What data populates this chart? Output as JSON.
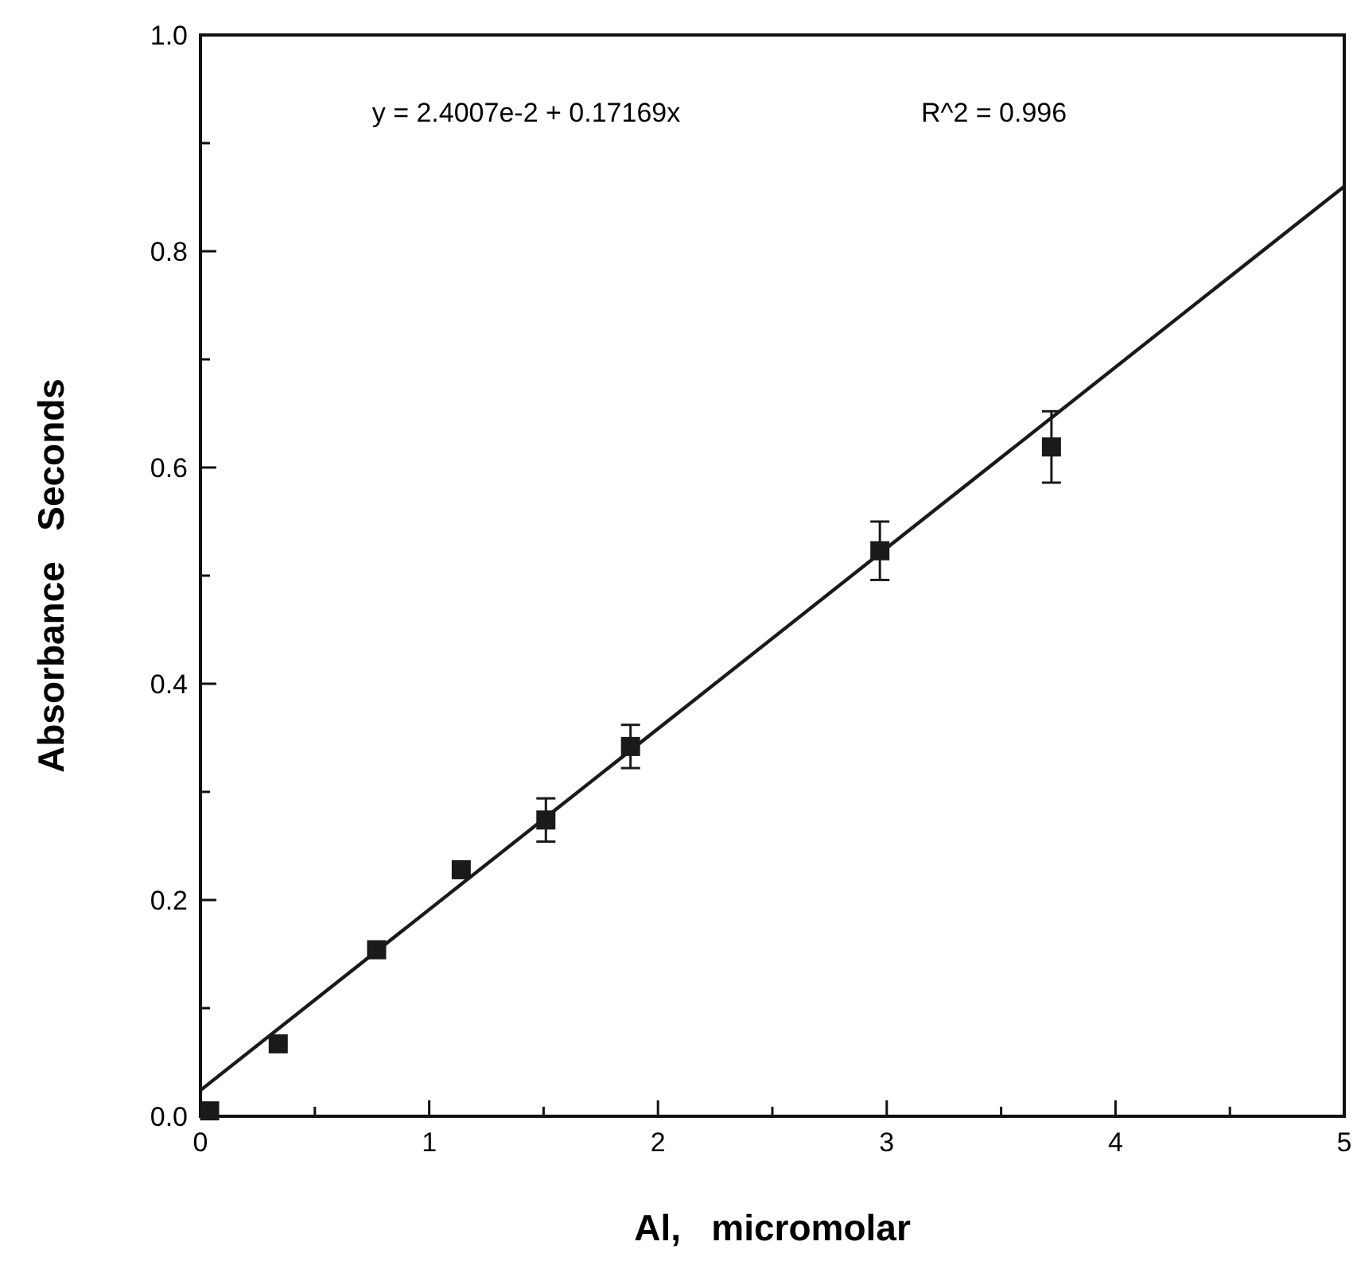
{
  "chart_data": {
    "type": "scatter",
    "xlabel": "Al,   micromolar",
    "ylabel": "Absorbance   Seconds",
    "annotations": [
      "y = 2.4007e-2 + 0.17169x",
      "R^2 = 0.996"
    ],
    "xlim": [
      0,
      5
    ],
    "ylim": [
      0,
      1
    ],
    "xticks": [
      0,
      {
        "value": 0.5,
        "label": null
      },
      1,
      {
        "value": 1.5,
        "label": null
      },
      2,
      {
        "value": 2.5,
        "label": null
      },
      3,
      {
        "value": 3.5,
        "label": null
      },
      4,
      {
        "value": 4.5,
        "label": null
      },
      5
    ],
    "yticks": [
      {
        "value": 0,
        "label": "0.0"
      },
      {
        "value": 0.1,
        "label": null
      },
      0.2,
      {
        "value": 0.3,
        "label": null
      },
      0.4,
      {
        "value": 0.5,
        "label": null
      },
      0.6,
      {
        "value": 0.7,
        "label": null
      },
      0.8,
      {
        "value": 0.9,
        "label": null
      },
      {
        "value": 1,
        "label": "1.0"
      }
    ],
    "grid": false,
    "series": [
      {
        "color": "#1a1a1a",
        "marker": "square",
        "x": [
          0.04,
          0.34,
          0.77,
          1.14,
          1.51,
          1.88,
          2.97,
          3.72
        ],
        "values": [
          0.005,
          0.067,
          0.154,
          0.228,
          0.274,
          0.342,
          0.523,
          0.619
        ],
        "errors": [
          null,
          null,
          null,
          null,
          0.02,
          0.02,
          0.027,
          0.033
        ]
      },
      {
        "type": "line",
        "color": "#1a1a1a",
        "marker": "none",
        "line_style": "solid",
        "x": [
          0,
          5
        ],
        "values": [
          0.024,
          0.86
        ]
      }
    ]
  }
}
